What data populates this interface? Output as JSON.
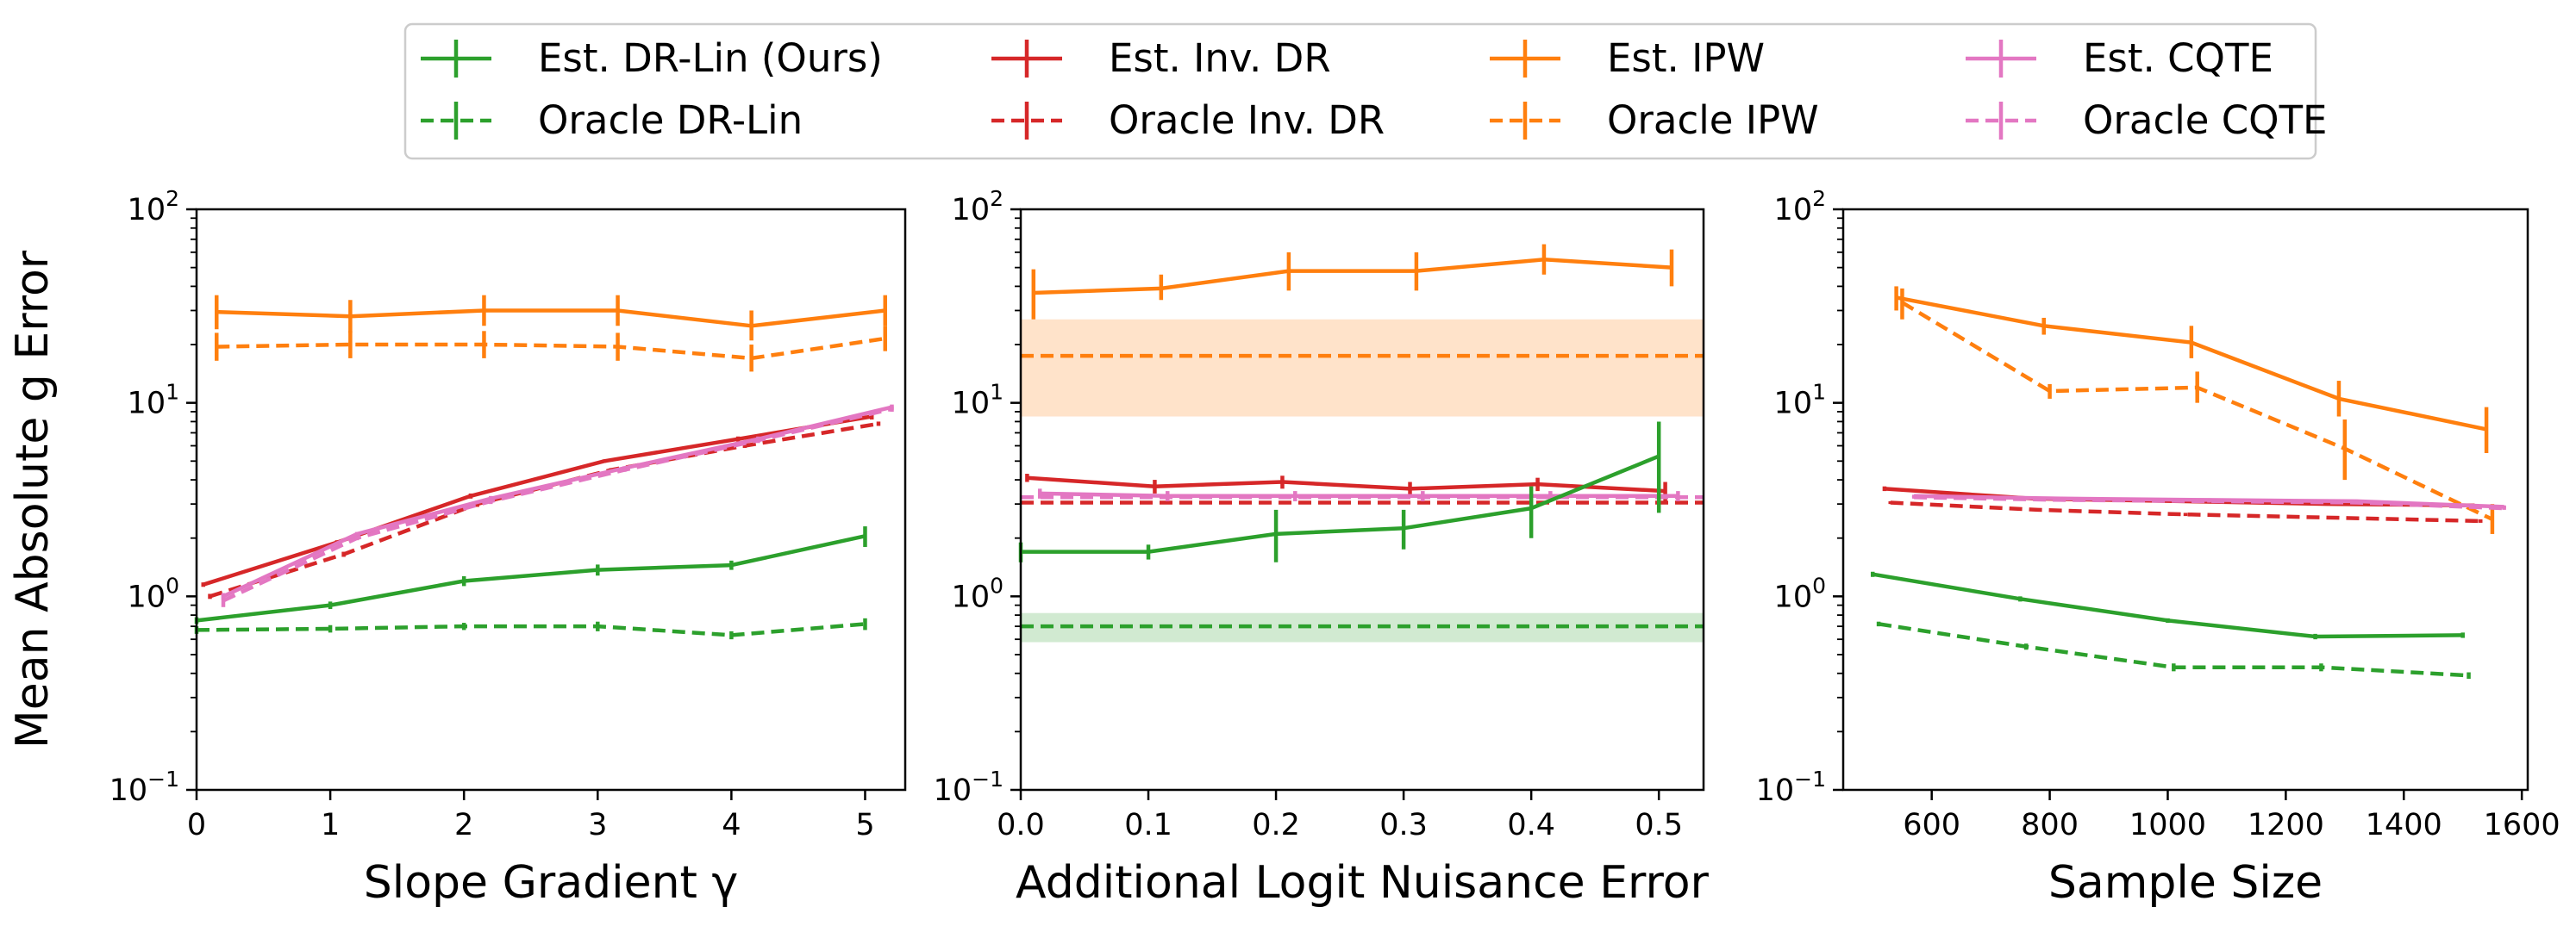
{
  "legend": {
    "placement": "top-center",
    "entries": [
      {
        "label": "Est. DR-Lin (Ours)",
        "color": "#2ca02c",
        "dashed": false
      },
      {
        "label": "Est. Inv. DR",
        "color": "#d62728",
        "dashed": false
      },
      {
        "label": "Est. IPW",
        "color": "#ff7f0e",
        "dashed": false
      },
      {
        "label": "Est. CQTE",
        "color": "#e377c2",
        "dashed": false
      },
      {
        "label": "Oracle DR-Lin",
        "color": "#2ca02c",
        "dashed": true
      },
      {
        "label": "Oracle Inv. DR",
        "color": "#d62728",
        "dashed": true
      },
      {
        "label": "Oracle IPW",
        "color": "#ff7f0e",
        "dashed": true
      },
      {
        "label": "Oracle CQTE",
        "color": "#e377c2",
        "dashed": true
      }
    ]
  },
  "chart_data": [
    {
      "type": "line",
      "xlabel": "Slope Gradient γ",
      "ylabel": "Mean Absolute g Error",
      "yscale": "log",
      "xlim": [
        0,
        5.3
      ],
      "ylim": [
        0.1,
        100
      ],
      "xticks": [
        0,
        1,
        2,
        3,
        4,
        5
      ],
      "yticks": [
        {
          "value": 0.1,
          "base": "10",
          "exp": "−1"
        },
        {
          "value": 1,
          "base": "10",
          "exp": "0"
        },
        {
          "value": 10,
          "base": "10",
          "exp": "1"
        },
        {
          "value": 100,
          "base": "10",
          "exp": "2"
        }
      ],
      "series": [
        {
          "name": "Est. IPW",
          "color": "#ff7f0e",
          "dashed": false,
          "x": [
            0.15,
            1.15,
            2.15,
            3.15,
            4.15,
            5.15
          ],
          "y": [
            29.5,
            28,
            30,
            30,
            25,
            30
          ],
          "err": [
            [
              24,
              36
            ],
            [
              23,
              34
            ],
            [
              25,
              36
            ],
            [
              25,
              36
            ],
            [
              21,
              30
            ],
            [
              25,
              36
            ]
          ]
        },
        {
          "name": "Oracle IPW",
          "color": "#ff7f0e",
          "dashed": true,
          "x": [
            0.15,
            1.15,
            2.15,
            3.15,
            4.15,
            5.15
          ],
          "y": [
            19.5,
            20,
            20,
            19.5,
            17,
            21.5
          ],
          "err": [
            [
              16.5,
              23
            ],
            [
              17,
              23.5
            ],
            [
              17,
              23.5
            ],
            [
              16.5,
              23
            ],
            [
              14.5,
              20
            ],
            [
              18.5,
              25
            ]
          ]
        },
        {
          "name": "Est. Inv. DR",
          "color": "#d62728",
          "dashed": false,
          "x": [
            0.05,
            1.05,
            2.05,
            3.05,
            4.05,
            5.05
          ],
          "y": [
            1.15,
            1.9,
            3.3,
            5,
            6.5,
            8.5
          ],
          "err": [
            [
              1.12,
              1.18
            ],
            [
              1.85,
              1.95
            ],
            [
              3.2,
              3.4
            ],
            [
              4.9,
              5.1
            ],
            [
              6.3,
              6.7
            ],
            [
              8.2,
              8.8
            ]
          ]
        },
        {
          "name": "Oracle Inv. DR",
          "color": "#d62728",
          "dashed": true,
          "x": [
            0.1,
            1.1,
            2.1,
            3.1,
            4.1,
            5.1
          ],
          "y": [
            1.0,
            1.65,
            3.0,
            4.5,
            6.0,
            7.8
          ],
          "err": [
            [
              0.97,
              1.03
            ],
            [
              1.6,
              1.7
            ],
            [
              2.9,
              3.1
            ],
            [
              4.4,
              4.6
            ],
            [
              5.85,
              6.15
            ],
            [
              7.6,
              8.0
            ]
          ]
        },
        {
          "name": "Est. CQTE",
          "color": "#e377c2",
          "dashed": false,
          "x": [
            0.2,
            1.2,
            2.2,
            3.2,
            4.2,
            5.2
          ],
          "y": [
            1.0,
            2.1,
            3.2,
            4.6,
            6.5,
            9.5
          ],
          "err": [
            [
              0.96,
              1.04
            ],
            [
              2.05,
              2.15
            ],
            [
              3.1,
              3.3
            ],
            [
              4.5,
              4.7
            ],
            [
              6.3,
              6.7
            ],
            [
              9.2,
              9.8
            ]
          ]
        },
        {
          "name": "Oracle CQTE",
          "color": "#e377c2",
          "dashed": true,
          "x": [
            0.2,
            1.2,
            2.2,
            3.2,
            4.2,
            5.2
          ],
          "y": [
            0.95,
            2.0,
            3.1,
            4.5,
            6.4,
            9.3
          ],
          "err": [
            [
              0.88,
              1.02
            ],
            [
              1.95,
              2.05
            ],
            [
              3.0,
              3.2
            ],
            [
              4.4,
              4.6
            ],
            [
              6.2,
              6.6
            ],
            [
              9.0,
              9.6
            ]
          ]
        },
        {
          "name": "Est. DR-Lin (Ours)",
          "color": "#2ca02c",
          "dashed": false,
          "x": [
            0,
            1,
            2,
            3,
            4,
            5
          ],
          "y": [
            0.75,
            0.9,
            1.2,
            1.37,
            1.45,
            2.05
          ],
          "err": [
            [
              0.72,
              0.78
            ],
            [
              0.86,
              0.94
            ],
            [
              1.13,
              1.27
            ],
            [
              1.28,
              1.46
            ],
            [
              1.37,
              1.53
            ],
            [
              1.8,
              2.3
            ]
          ]
        },
        {
          "name": "Oracle DR-Lin",
          "color": "#2ca02c",
          "dashed": true,
          "x": [
            0,
            1,
            2,
            3,
            4,
            5
          ],
          "y": [
            0.67,
            0.68,
            0.7,
            0.7,
            0.63,
            0.72
          ],
          "err": [
            [
              0.64,
              0.7
            ],
            [
              0.65,
              0.71
            ],
            [
              0.67,
              0.73
            ],
            [
              0.66,
              0.74
            ],
            [
              0.6,
              0.66
            ],
            [
              0.67,
              0.77
            ]
          ]
        }
      ],
      "bands": []
    },
    {
      "type": "line",
      "xlabel": "Additional Logit Nuisance Error",
      "ylabel": "",
      "yscale": "log",
      "xlim": [
        0,
        0.535
      ],
      "ylim": [
        0.1,
        100
      ],
      "xticks": [
        0.0,
        0.1,
        0.2,
        0.3,
        0.4,
        0.5
      ],
      "xticklabels": [
        "0.0",
        "0.1",
        "0.2",
        "0.3",
        "0.4",
        "0.5"
      ],
      "yticks": [
        {
          "value": 0.1,
          "base": "10",
          "exp": "−1"
        },
        {
          "value": 1,
          "base": "10",
          "exp": "0"
        },
        {
          "value": 10,
          "base": "10",
          "exp": "1"
        },
        {
          "value": 100,
          "base": "10",
          "exp": "2"
        }
      ],
      "bands": [
        {
          "color": "#ff7f0e",
          "low": 8.5,
          "high": 27
        },
        {
          "color": "#2ca02c",
          "low": 0.58,
          "high": 0.82
        }
      ],
      "series": [
        {
          "name": "Est. IPW",
          "color": "#ff7f0e",
          "dashed": false,
          "x": [
            0.01,
            0.11,
            0.21,
            0.31,
            0.41,
            0.51
          ],
          "y": [
            37,
            39,
            48,
            48,
            55,
            50
          ],
          "err": [
            [
              27,
              49
            ],
            [
              34,
              46
            ],
            [
              38,
              60
            ],
            [
              38,
              60
            ],
            [
              46,
              66
            ],
            [
              40,
              62
            ]
          ]
        },
        {
          "name": "Oracle IPW",
          "color": "#ff7f0e",
          "dashed": true,
          "x": [
            0,
            0.535
          ],
          "y": [
            17.5,
            17.5
          ],
          "err": []
        },
        {
          "name": "Est. Inv. DR",
          "color": "#d62728",
          "dashed": false,
          "x": [
            0.005,
            0.105,
            0.205,
            0.305,
            0.405,
            0.505
          ],
          "y": [
            4.1,
            3.7,
            3.9,
            3.6,
            3.8,
            3.5
          ],
          "err": [
            [
              3.9,
              4.3
            ],
            [
              3.4,
              4.0
            ],
            [
              3.6,
              4.2
            ],
            [
              3.3,
              3.9
            ],
            [
              3.5,
              4.1
            ],
            [
              3.1,
              3.9
            ]
          ]
        },
        {
          "name": "Oracle Inv. DR",
          "color": "#d62728",
          "dashed": true,
          "x": [
            0,
            0.535
          ],
          "y": [
            3.05,
            3.05
          ],
          "err": []
        },
        {
          "name": "Est. CQTE",
          "color": "#e377c2",
          "dashed": false,
          "x": [
            0.015,
            0.115,
            0.215,
            0.315,
            0.415,
            0.515
          ],
          "y": [
            3.4,
            3.3,
            3.3,
            3.3,
            3.3,
            3.3
          ],
          "err": [
            [
              3.2,
              3.6
            ],
            [
              3.1,
              3.5
            ],
            [
              3.1,
              3.5
            ],
            [
              3.1,
              3.5
            ],
            [
              3.1,
              3.5
            ],
            [
              3.1,
              3.5
            ]
          ]
        },
        {
          "name": "Oracle CQTE",
          "color": "#e377c2",
          "dashed": true,
          "x": [
            0,
            0.535
          ],
          "y": [
            3.25,
            3.25
          ],
          "err": []
        },
        {
          "name": "Est. DR-Lin (Ours)",
          "color": "#2ca02c",
          "dashed": false,
          "x": [
            0,
            0.1,
            0.2,
            0.3,
            0.4,
            0.5
          ],
          "y": [
            1.7,
            1.7,
            2.1,
            2.25,
            2.85,
            5.3
          ],
          "err": [
            [
              1.5,
              1.9
            ],
            [
              1.55,
              1.85
            ],
            [
              1.5,
              2.8
            ],
            [
              1.75,
              2.8
            ],
            [
              2.0,
              3.7
            ],
            [
              2.7,
              8.0
            ]
          ]
        },
        {
          "name": "Oracle DR-Lin",
          "color": "#2ca02c",
          "dashed": true,
          "x": [
            0,
            0.535
          ],
          "y": [
            0.7,
            0.7
          ],
          "err": []
        }
      ]
    },
    {
      "type": "line",
      "xlabel": "Sample Size",
      "ylabel": "",
      "yscale": "log",
      "xlim": [
        450,
        1610
      ],
      "ylim": [
        0.1,
        100
      ],
      "xticks": [
        600,
        800,
        1000,
        1200,
        1400,
        1600
      ],
      "yticks": [
        {
          "value": 0.1,
          "base": "10",
          "exp": "−1"
        },
        {
          "value": 1,
          "base": "10",
          "exp": "0"
        },
        {
          "value": 10,
          "base": "10",
          "exp": "1"
        },
        {
          "value": 100,
          "base": "10",
          "exp": "2"
        }
      ],
      "bands": [],
      "series": [
        {
          "name": "Est. IPW",
          "color": "#ff7f0e",
          "dashed": false,
          "x": [
            540,
            790,
            1040,
            1290,
            1540
          ],
          "y": [
            35,
            25,
            20.5,
            10.5,
            7.3
          ],
          "err": [
            [
              30,
              40
            ],
            [
              22.5,
              27.5
            ],
            [
              17,
              25
            ],
            [
              8.5,
              13
            ],
            [
              5.5,
              9.5
            ]
          ]
        },
        {
          "name": "Oracle IPW",
          "color": "#ff7f0e",
          "dashed": true,
          "x": [
            550,
            800,
            1050,
            1300,
            1550
          ],
          "y": [
            33,
            11.5,
            12,
            5.8,
            2.5
          ],
          "err": [
            [
              27,
              39
            ],
            [
              10.5,
              12.5
            ],
            [
              10,
              14.5
            ],
            [
              4.0,
              8.2
            ],
            [
              2.1,
              3.0
            ]
          ]
        },
        {
          "name": "Est. Inv. DR",
          "color": "#d62728",
          "dashed": false,
          "x": [
            520,
            770,
            1020,
            1270,
            1520
          ],
          "y": [
            3.6,
            3.2,
            3.1,
            3.0,
            2.95
          ],
          "err": [
            [
              3.5,
              3.7
            ],
            [
              3.15,
              3.25
            ],
            [
              3.05,
              3.15
            ],
            [
              2.95,
              3.05
            ],
            [
              2.9,
              3.0
            ]
          ]
        },
        {
          "name": "Oracle Inv. DR",
          "color": "#d62728",
          "dashed": true,
          "x": [
            530,
            780,
            1030,
            1280,
            1530
          ],
          "y": [
            3.05,
            2.8,
            2.65,
            2.55,
            2.45
          ],
          "err": [
            [
              3.0,
              3.1
            ],
            [
              2.75,
              2.85
            ],
            [
              2.6,
              2.7
            ],
            [
              2.5,
              2.6
            ],
            [
              2.4,
              2.5
            ]
          ]
        },
        {
          "name": "Est. CQTE",
          "color": "#e377c2",
          "dashed": false,
          "x": [
            570,
            820,
            1070,
            1320,
            1570
          ],
          "y": [
            3.3,
            3.2,
            3.15,
            3.1,
            2.9
          ],
          "err": [
            [
              3.25,
              3.35
            ],
            [
              3.15,
              3.25
            ],
            [
              3.1,
              3.2
            ],
            [
              3.05,
              3.15
            ],
            [
              2.85,
              2.95
            ]
          ]
        },
        {
          "name": "Oracle CQTE",
          "color": "#e377c2",
          "dashed": true,
          "x": [
            570,
            820,
            1070,
            1320,
            1570
          ],
          "y": [
            3.25,
            3.15,
            3.1,
            3.05,
            2.85
          ],
          "err": [
            [
              3.2,
              3.3
            ],
            [
              3.1,
              3.2
            ],
            [
              3.05,
              3.15
            ],
            [
              3.0,
              3.1
            ],
            [
              2.8,
              2.9
            ]
          ]
        },
        {
          "name": "Est. DR-Lin (Ours)",
          "color": "#2ca02c",
          "dashed": false,
          "x": [
            500,
            750,
            1000,
            1250,
            1500
          ],
          "y": [
            1.3,
            0.97,
            0.75,
            0.62,
            0.63
          ],
          "err": [
            [
              1.26,
              1.34
            ],
            [
              0.94,
              1.0
            ],
            [
              0.73,
              0.77
            ],
            [
              0.6,
              0.64
            ],
            [
              0.61,
              0.65
            ]
          ]
        },
        {
          "name": "Oracle DR-Lin",
          "color": "#2ca02c",
          "dashed": true,
          "x": [
            510,
            760,
            1010,
            1260,
            1510
          ],
          "y": [
            0.72,
            0.55,
            0.43,
            0.43,
            0.39
          ],
          "err": [
            [
              0.7,
              0.74
            ],
            [
              0.53,
              0.57
            ],
            [
              0.41,
              0.45
            ],
            [
              0.41,
              0.45
            ],
            [
              0.375,
              0.405
            ]
          ]
        }
      ]
    }
  ]
}
